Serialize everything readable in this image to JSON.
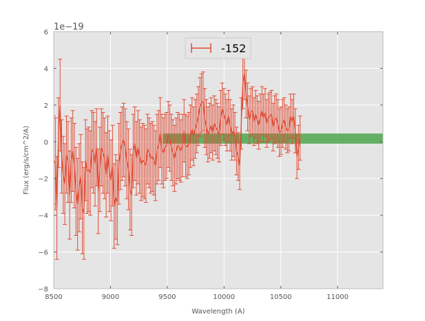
{
  "chart_data": {
    "type": "line",
    "title": "",
    "xlabel": "Wavelength (A)",
    "ylabel": "Flux (erg/s/cm^2/A)",
    "offset_text": "1e−19",
    "xlim": [
      8500,
      11400
    ],
    "ylim": [
      -8,
      6
    ],
    "xticks": [
      8500,
      9000,
      9500,
      10000,
      10500,
      11000
    ],
    "xtick_labels": [
      "8500",
      "9000",
      "9500",
      "10000",
      "10500",
      "11000"
    ],
    "yticks": [
      -8,
      -6,
      -4,
      -2,
      0,
      2,
      4,
      6
    ],
    "ytick_labels": [
      "−8",
      "−6",
      "−4",
      "−2",
      "0",
      "2",
      "4",
      "6"
    ],
    "grid": true,
    "legend_position": "top-center",
    "colors": {
      "series": "#e24a33",
      "band": "#4ca64c",
      "axes_bg": "#e5e5e5",
      "grid": "#ffffff"
    },
    "band": {
      "x_start": 9460,
      "x_end": 11400,
      "y_low": -0.1,
      "y_high": 0.45
    },
    "series": [
      {
        "name": "-152",
        "x_start": 8500,
        "x_step": 14,
        "y": [
          -1.0,
          -1.2,
          -3.6,
          0.5,
          2.0,
          -0.8,
          -1.8,
          -2.3,
          -0.7,
          -1.1,
          -2.9,
          -1.0,
          -0.5,
          -1.3,
          -2.7,
          -3.4,
          -2.5,
          -1.9,
          -3.6,
          -3.9,
          -1.0,
          -1.6,
          -1.5,
          -1.7,
          -0.4,
          -0.6,
          -1.2,
          -0.3,
          -2.7,
          -1.5,
          -0.3,
          -0.6,
          -0.9,
          -1.8,
          -0.7,
          -1.6,
          -2.1,
          -1.3,
          -3.5,
          -3.0,
          -3.3,
          -1.2,
          -0.5,
          -0.1,
          0.1,
          -0.3,
          -1.0,
          -1.5,
          -2.6,
          -2.9,
          -0.5,
          -0.1,
          -0.9,
          -0.3,
          -0.8,
          -1.2,
          -1.0,
          -1.1,
          -1.3,
          -0.4,
          -0.6,
          -0.9,
          -0.8,
          -1.0,
          -1.3,
          -0.4,
          -0.2,
          0.5,
          -0.4,
          -0.6,
          -0.3,
          -0.2,
          0.4,
          0.2,
          -0.3,
          -0.6,
          -0.9,
          -0.5,
          -0.2,
          -0.3,
          -0.5,
          -0.2,
          0.6,
          -0.2,
          -0.3,
          -0.1,
          0.3,
          0.7,
          0.3,
          0.7,
          1.0,
          1.4,
          1.9,
          2.1,
          2.2,
          1.3,
          0.8,
          0.4,
          0.6,
          0.9,
          0.5,
          1.0,
          0.8,
          0.6,
          0.4,
          1.3,
          1.8,
          1.5,
          1.2,
          0.9,
          1.4,
          0.9,
          0.4,
          0.6,
          0.3,
          -0.5,
          -0.8,
          -1.3,
          1.0,
          3.2,
          3.7,
          2.6,
          1.9,
          1.2,
          1.6,
          1.7,
          1.1,
          1.5,
          1.2,
          0.9,
          1.3,
          1.7,
          1.3,
          1.6,
          1.0,
          1.3,
          1.4,
          1.5,
          0.8,
          1.2,
          1.3,
          1.0,
          0.5,
          0.6,
          1.0,
          1.2,
          0.8,
          0.6,
          0.7,
          1.4,
          1.1,
          1.4,
          0.6,
          -0.8,
          -0.3,
          0.2
        ],
        "err": [
          2.4,
          2.5,
          2.8,
          1.9,
          2.5,
          2.0,
          2.1,
          2.2,
          2.1,
          2.2,
          2.4,
          2.3,
          2.2,
          2.3,
          2.4,
          2.5,
          2.4,
          2.3,
          2.5,
          2.5,
          2.2,
          2.3,
          2.3,
          2.3,
          2.1,
          2.2,
          2.3,
          2.1,
          2.3,
          2.3,
          2.1,
          2.2,
          2.2,
          2.3,
          2.1,
          2.2,
          2.2,
          2.2,
          2.3,
          2.3,
          2.3,
          2.2,
          2.1,
          2.0,
          2.0,
          2.1,
          2.1,
          2.2,
          2.2,
          2.2,
          2.0,
          2.0,
          2.0,
          2.0,
          2.0,
          2.0,
          2.0,
          2.0,
          2.0,
          1.9,
          1.9,
          1.9,
          1.9,
          1.9,
          1.9,
          1.9,
          1.9,
          1.9,
          1.9,
          1.9,
          1.8,
          1.8,
          1.8,
          1.8,
          1.8,
          1.8,
          1.8,
          1.8,
          1.8,
          1.8,
          1.7,
          1.7,
          1.7,
          1.7,
          1.7,
          1.7,
          1.7,
          1.7,
          1.6,
          1.6,
          1.6,
          1.6,
          1.6,
          1.6,
          1.6,
          1.6,
          1.5,
          1.5,
          1.5,
          1.5,
          1.5,
          1.5,
          1.5,
          1.5,
          1.5,
          1.5,
          1.4,
          1.4,
          1.4,
          1.4,
          1.4,
          1.4,
          1.4,
          1.4,
          1.3,
          1.3,
          1.3,
          1.3,
          1.4,
          1.4,
          1.4,
          1.3,
          1.3,
          1.3,
          1.3,
          1.3,
          1.3,
          1.3,
          1.3,
          1.3,
          1.3,
          1.3,
          1.3,
          1.3,
          1.3,
          1.3,
          1.3,
          1.3,
          1.3,
          1.3,
          1.3,
          1.3,
          1.3,
          1.3,
          1.3,
          1.2,
          1.2,
          1.2,
          1.2,
          1.2,
          1.2,
          1.2,
          1.2,
          1.2,
          1.2,
          1.2
        ]
      }
    ]
  }
}
